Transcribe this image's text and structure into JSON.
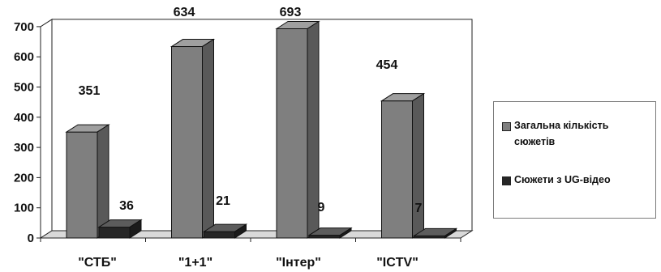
{
  "chart_data": {
    "type": "bar",
    "categories": [
      "\"СТБ\"",
      "\"1+1\"",
      "\"Інтер\"",
      "\"ICTV\""
    ],
    "series": [
      {
        "name": "Загальна  кількість сюжетів",
        "values": [
          351,
          634,
          693,
          454
        ],
        "color": "#7f7f7f"
      },
      {
        "name": "Сюжети з UG-відео",
        "values": [
          36,
          21,
          9,
          7
        ],
        "color": "#262626"
      }
    ],
    "data_labels": [
      [
        "351",
        "634",
        "693",
        "454"
      ],
      [
        "36",
        "21",
        "9",
        "7"
      ]
    ],
    "yticks": [
      "0",
      "100",
      "200",
      "300",
      "400",
      "500",
      "600",
      "700"
    ],
    "ylim": [
      0,
      700
    ],
    "grid": false,
    "legend_position": "right",
    "style": "3d-clustered-column"
  }
}
